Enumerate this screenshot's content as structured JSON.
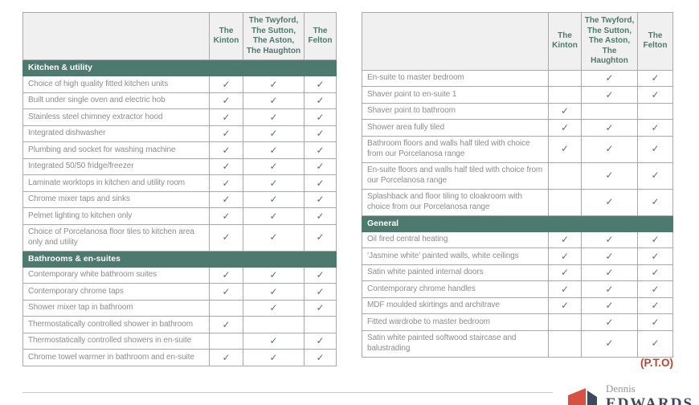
{
  "check_glyph": "✓",
  "columns": [
    "The Kinton",
    "The Twyford, The Sutton, The Aston, The Haughton",
    "The Felton"
  ],
  "left_table": {
    "sections": [
      {
        "title": "Kitchen & utility",
        "rows": [
          {
            "label": "Choice of high quality fitted kitchen units",
            "checks": [
              true,
              true,
              true
            ]
          },
          {
            "label": "Built under single oven and electric hob",
            "checks": [
              true,
              true,
              true
            ]
          },
          {
            "label": "Stainless steel chimney extractor hood",
            "checks": [
              true,
              true,
              true
            ]
          },
          {
            "label": "Integrated dishwasher",
            "checks": [
              true,
              true,
              true
            ]
          },
          {
            "label": "Plumbing and socket for washing machine",
            "checks": [
              true,
              true,
              true
            ]
          },
          {
            "label": "Integrated 50/50 fridge/freezer",
            "checks": [
              true,
              true,
              true
            ]
          },
          {
            "label": "Laminate worktops in kitchen and utility room",
            "checks": [
              true,
              true,
              true
            ]
          },
          {
            "label": "Chrome mixer taps and sinks",
            "checks": [
              true,
              true,
              true
            ]
          },
          {
            "label": "Pelmet lighting to kitchen only",
            "checks": [
              true,
              true,
              true
            ]
          },
          {
            "label": "Choice of Porcelanosa floor tiles to kitchen area only and utility",
            "checks": [
              true,
              true,
              true
            ]
          }
        ]
      },
      {
        "title": "Bathrooms & en-suites",
        "rows": [
          {
            "label": "Contemporary white bathroom suites",
            "checks": [
              true,
              true,
              true
            ]
          },
          {
            "label": "Contemporary chrome taps",
            "checks": [
              true,
              true,
              true
            ]
          },
          {
            "label": "Shower mixer tap in bathroom",
            "checks": [
              false,
              true,
              true
            ]
          },
          {
            "label": "Thermostatically controlled shower in bathroom",
            "checks": [
              true,
              false,
              false
            ]
          },
          {
            "label": "Thermostatically controlled showers in en-suite",
            "checks": [
              false,
              true,
              true
            ]
          },
          {
            "label": "Chrome towel warmer in bathroom and en-suite",
            "checks": [
              true,
              true,
              true
            ]
          }
        ]
      }
    ]
  },
  "right_table": {
    "sections": [
      {
        "title": null,
        "rows": [
          {
            "label": "En-suite to master bedroom",
            "checks": [
              false,
              true,
              true
            ]
          },
          {
            "label": "Shaver point to en-suite 1",
            "checks": [
              false,
              true,
              true
            ]
          },
          {
            "label": "Shaver point to bathroom",
            "checks": [
              true,
              false,
              false
            ]
          },
          {
            "label": "Shower area fully tiled",
            "checks": [
              true,
              true,
              true
            ]
          },
          {
            "label": "Bathroom floors and walls half tiled with choice from our Porcelanosa range",
            "checks": [
              true,
              true,
              true
            ]
          },
          {
            "label": "En-suite floors and walls half tiled with choice from our Porcelanosa range",
            "checks": [
              false,
              true,
              true
            ]
          },
          {
            "label": "Splashback and floor tiling to cloakroom with choice from our Porcelanosa range",
            "checks": [
              false,
              true,
              true
            ]
          }
        ]
      },
      {
        "title": "General",
        "rows": [
          {
            "label": "Oil fired central heating",
            "checks": [
              true,
              true,
              true
            ]
          },
          {
            "label": "‘Jasmine white’ painted walls, white ceilings",
            "checks": [
              true,
              true,
              true
            ]
          },
          {
            "label": "Satin white painted internal doors",
            "checks": [
              true,
              true,
              true
            ]
          },
          {
            "label": "Contemporary chrome handles",
            "checks": [
              true,
              true,
              true
            ]
          },
          {
            "label": "MDF moulded skirtings and architrave",
            "checks": [
              true,
              true,
              true
            ]
          },
          {
            "label": "Fitted wardrobe to master bedroom",
            "checks": [
              false,
              true,
              true
            ]
          },
          {
            "label": "Satin white painted softwood staircase and balustrading",
            "checks": [
              false,
              true,
              true
            ]
          }
        ]
      }
    ]
  },
  "footer": {
    "pto": "(P.T.O)",
    "logo_top": "Dennis",
    "logo_bottom": "EDWARDS"
  },
  "colors": {
    "banner_green": "#4c7a6e",
    "header_text": "#4e7a6e",
    "pto_red": "#c0432c",
    "logo_red": "#d8503f",
    "logo_navy": "#3c4a61"
  }
}
